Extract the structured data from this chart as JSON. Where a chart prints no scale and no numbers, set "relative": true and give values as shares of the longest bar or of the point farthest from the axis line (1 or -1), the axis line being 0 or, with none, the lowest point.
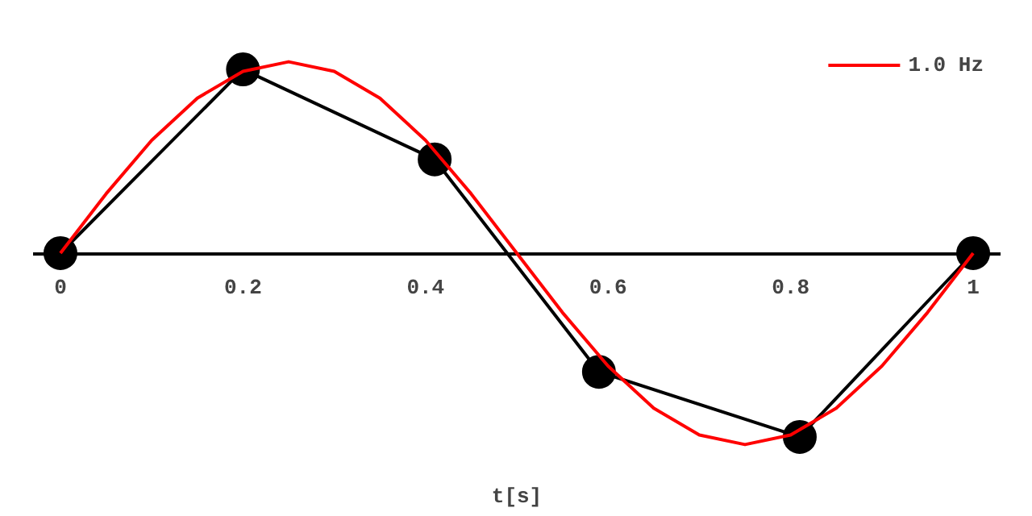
{
  "chart_data": {
    "type": "line",
    "relative": true,
    "xlabel": "t[s]",
    "xlim": [
      -0.03,
      1.03
    ],
    "xticks": [
      0,
      0.2,
      0.4,
      0.6,
      0.8,
      1
    ],
    "legend": "top right",
    "series": [
      {
        "name": "1.0 Hz",
        "color": "#ff0000",
        "marker": "none",
        "x": [
          0,
          0.05,
          0.1,
          0.15,
          0.2,
          0.25,
          0.3,
          0.35,
          0.4,
          0.45,
          0.5,
          0.55,
          0.6,
          0.65,
          0.7,
          0.75,
          0.8,
          0.85,
          0.9,
          0.95,
          1
        ],
        "values": [
          0,
          0.31,
          0.59,
          0.81,
          0.95,
          1,
          0.95,
          0.81,
          0.59,
          0.31,
          0,
          -0.31,
          -0.59,
          -0.81,
          -0.95,
          -1,
          -0.95,
          -0.81,
          -0.59,
          -0.31,
          0
        ]
      },
      {
        "color": "#000000",
        "marker": "circle",
        "x": [
          0,
          0.2,
          0.41,
          0.59,
          0.81,
          1
        ],
        "values": [
          0,
          0.96,
          0.49,
          -0.62,
          -0.96,
          0
        ]
      }
    ]
  }
}
